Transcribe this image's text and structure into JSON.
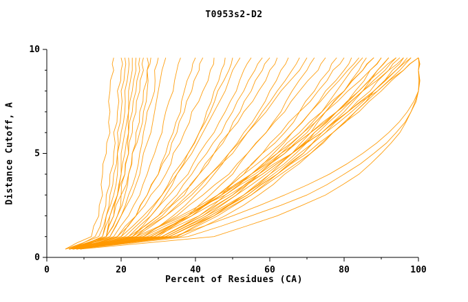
{
  "window": {
    "background": "#ffffff"
  },
  "chart_data": {
    "type": "line",
    "title": "T0953s2-D2",
    "xlabel": "Percent of Residues (CA)",
    "ylabel": "Distance Cutoff, A",
    "xlim": [
      0,
      100
    ],
    "ylim": [
      0,
      10
    ],
    "x_major_ticks": [
      0,
      20,
      40,
      60,
      80,
      100
    ],
    "x_minor_step": 10,
    "y_major_ticks": [
      0,
      5,
      10
    ],
    "y_minor_step": 1,
    "line_color": "#ff9900",
    "axis_color": "#000000",
    "text_color": "#000000",
    "legend": "none",
    "grid": false,
    "cutoffs": [
      0.4,
      1,
      2,
      3,
      4,
      5,
      6,
      7,
      8,
      9,
      9.6
    ],
    "series": [
      {
        "x": [
          5,
          12,
          14,
          15,
          15,
          16,
          17,
          17,
          17,
          18,
          18
        ]
      },
      {
        "x": [
          6,
          13,
          15,
          16,
          17,
          18,
          18,
          19,
          19,
          20,
          20
        ]
      },
      {
        "x": [
          5,
          14,
          16,
          17,
          18,
          19,
          19,
          20,
          20,
          21,
          21
        ]
      },
      {
        "x": [
          7,
          15,
          16,
          18,
          19,
          19,
          20,
          21,
          21,
          22,
          22
        ]
      },
      {
        "x": [
          6,
          16,
          17,
          19,
          20,
          20,
          21,
          22,
          22,
          23,
          23
        ]
      },
      {
        "x": [
          8,
          15,
          17,
          19,
          20,
          21,
          22,
          22,
          23,
          24,
          24
        ]
      },
      {
        "x": [
          6,
          16,
          18,
          19,
          21,
          22,
          22,
          23,
          24,
          25,
          25
        ]
      },
      {
        "x": [
          7,
          16,
          18,
          20,
          21,
          22,
          23,
          24,
          25,
          26,
          26
        ]
      },
      {
        "x": [
          5,
          16,
          19,
          20,
          22,
          23,
          24,
          25,
          26,
          27,
          27
        ]
      },
      {
        "x": [
          8,
          16,
          19,
          21,
          22,
          23,
          25,
          26,
          27,
          27,
          28
        ]
      },
      {
        "x": [
          6,
          17,
          20,
          22,
          24,
          25,
          26,
          27,
          29,
          29,
          30
        ]
      },
      {
        "x": [
          7,
          17,
          20,
          23,
          25,
          26,
          28,
          29,
          30,
          31,
          32
        ]
      },
      {
        "x": [
          6,
          18,
          22,
          25,
          27,
          29,
          31,
          32,
          34,
          35,
          36
        ]
      },
      {
        "x": [
          8,
          20,
          24,
          27,
          30,
          32,
          34,
          36,
          37,
          39,
          40
        ]
      },
      {
        "x": [
          6,
          19,
          24,
          27,
          30,
          33,
          35,
          37,
          39,
          41,
          42
        ]
      },
      {
        "x": [
          7,
          19,
          24,
          28,
          32,
          34,
          37,
          39,
          42,
          44,
          45
        ]
      },
      {
        "x": [
          9,
          23,
          28,
          32,
          35,
          38,
          41,
          43,
          45,
          47,
          48
        ]
      },
      {
        "x": [
          6,
          20,
          26,
          31,
          34,
          38,
          41,
          44,
          46,
          49,
          50
        ]
      },
      {
        "x": [
          8,
          21,
          27,
          31,
          35,
          39,
          42,
          45,
          48,
          50,
          52
        ]
      },
      {
        "x": [
          6,
          22,
          28,
          33,
          38,
          41,
          45,
          48,
          51,
          53,
          55
        ]
      },
      {
        "x": [
          9,
          23,
          30,
          35,
          39,
          43,
          47,
          50,
          53,
          56,
          58
        ]
      },
      {
        "x": [
          7,
          24,
          31,
          37,
          41,
          45,
          49,
          52,
          55,
          58,
          60
        ]
      },
      {
        "x": [
          6,
          22,
          30,
          36,
          41,
          45,
          49,
          53,
          57,
          60,
          62
        ]
      },
      {
        "x": [
          8,
          26,
          34,
          40,
          45,
          49,
          53,
          57,
          60,
          63,
          65
        ]
      },
      {
        "x": [
          6,
          24,
          32,
          39,
          44,
          49,
          54,
          58,
          62,
          66,
          68
        ]
      },
      {
        "x": [
          7,
          23,
          32,
          38,
          44,
          50,
          54,
          59,
          63,
          68,
          70
        ]
      },
      {
        "x": [
          9,
          29,
          38,
          44,
          50,
          54,
          59,
          63,
          66,
          70,
          72
        ]
      },
      {
        "x": [
          6,
          26,
          35,
          42,
          49,
          54,
          59,
          64,
          68,
          73,
          75
        ]
      },
      {
        "x": [
          7,
          30,
          39,
          47,
          53,
          58,
          63,
          68,
          72,
          76,
          78
        ]
      },
      {
        "x": [
          8,
          29,
          38,
          46,
          52,
          58,
          64,
          68,
          73,
          77,
          80
        ]
      },
      {
        "x": [
          6,
          31,
          41,
          48,
          55,
          61,
          66,
          71,
          75,
          80,
          82
        ]
      },
      {
        "x": [
          9,
          28,
          38,
          46,
          53,
          60,
          66,
          71,
          76,
          81,
          84
        ]
      },
      {
        "x": [
          7,
          32,
          43,
          51,
          57,
          63,
          69,
          74,
          78,
          82,
          85
        ]
      },
      {
        "x": [
          6,
          35,
          45,
          53,
          60,
          66,
          71,
          75,
          80,
          84,
          86
        ]
      },
      {
        "x": [
          8,
          31,
          42,
          50,
          57,
          64,
          70,
          75,
          80,
          85,
          88
        ]
      },
      {
        "x": [
          7,
          28,
          39,
          47,
          55,
          62,
          68,
          74,
          80,
          85,
          88
        ]
      },
      {
        "x": [
          6,
          33,
          44,
          53,
          60,
          67,
          72,
          78,
          83,
          87,
          90
        ]
      },
      {
        "x": [
          9,
          28,
          38,
          47,
          55,
          62,
          69,
          75,
          81,
          87,
          90
        ]
      },
      {
        "x": [
          6,
          31,
          42,
          51,
          59,
          66,
          72,
          78,
          84,
          89,
          92
        ]
      },
      {
        "x": [
          8,
          35,
          46,
          55,
          62,
          69,
          74,
          80,
          85,
          89,
          92
        ]
      },
      {
        "x": [
          7,
          29,
          41,
          50,
          58,
          66,
          73,
          79,
          85,
          91,
          94
        ]
      },
      {
        "x": [
          6,
          26,
          38,
          47,
          56,
          64,
          71,
          78,
          84,
          90,
          94
        ]
      },
      {
        "x": [
          8,
          33,
          45,
          54,
          62,
          69,
          75,
          81,
          87,
          92,
          95
        ]
      },
      {
        "x": [
          7,
          36,
          48,
          57,
          64,
          71,
          77,
          83,
          88,
          93,
          96
        ]
      },
      {
        "x": [
          6,
          24,
          36,
          46,
          55,
          63,
          71,
          78,
          85,
          92,
          96
        ]
      },
      {
        "x": [
          9,
          32,
          43,
          53,
          61,
          68,
          75,
          82,
          88,
          94,
          97
        ]
      },
      {
        "x": [
          7,
          33,
          45,
          55,
          63,
          71,
          77,
          83,
          89,
          95,
          98
        ]
      },
      {
        "x": [
          6,
          27,
          39,
          49,
          58,
          66,
          74,
          81,
          88,
          94,
          98
        ]
      },
      {
        "x": [
          8,
          32,
          44,
          54,
          62,
          70,
          77,
          84,
          90,
          96,
          100
        ]
      },
      {
        "x": [
          6,
          25,
          37,
          48,
          57,
          66,
          74,
          81,
          89,
          96,
          100
        ]
      },
      {
        "x": [
          8,
          38,
          55,
          70,
          80,
          88,
          94,
          98,
          100,
          100,
          100
        ]
      },
      {
        "x": [
          7,
          34,
          50,
          64,
          76,
          85,
          92,
          97,
          100,
          100,
          100
        ]
      },
      {
        "x": [
          9,
          45,
          62,
          75,
          84,
          90,
          95,
          98,
          100,
          100,
          100
        ]
      }
    ]
  }
}
